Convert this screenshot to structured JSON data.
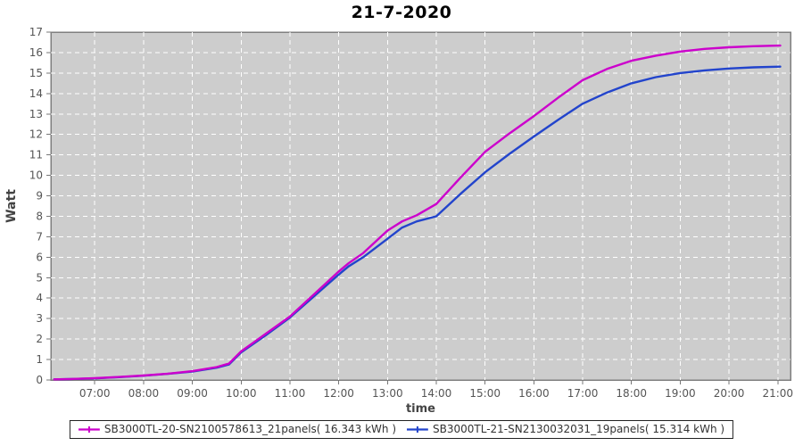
{
  "title": "21-7-2020",
  "chart_data": {
    "type": "line",
    "title": "21-7-2020",
    "xlabel": "time",
    "ylabel": "Watt",
    "ylim": [
      0,
      17
    ],
    "xlim_hours": [
      6.1,
      21.26
    ],
    "grid": "white dashed gridlines on gray panel, hourly vertical, unit horizontal",
    "legend_position": "bottom-center boxed",
    "x_tick_labels": [
      "07:00",
      "08:00",
      "09:00",
      "10:00",
      "11:00",
      "12:00",
      "13:00",
      "14:00",
      "15:00",
      "16:00",
      "17:00",
      "18:00",
      "19:00",
      "20:00",
      "21:00"
    ],
    "x_tick_hours": [
      7,
      8,
      9,
      10,
      11,
      12,
      13,
      14,
      15,
      16,
      17,
      18,
      19,
      20,
      21
    ],
    "y_tick_labels": [
      "0",
      "1",
      "2",
      "3",
      "4",
      "5",
      "6",
      "7",
      "8",
      "9",
      "10",
      "11",
      "12",
      "13",
      "14",
      "15",
      "16",
      "17"
    ],
    "y_tick_values": [
      0,
      1,
      2,
      3,
      4,
      5,
      6,
      7,
      8,
      9,
      10,
      11,
      12,
      13,
      14,
      15,
      16,
      17
    ],
    "x_hours": [
      6.17,
      6.5,
      7.0,
      7.5,
      8.0,
      8.5,
      9.0,
      9.5,
      9.75,
      10.0,
      10.5,
      11.0,
      11.5,
      12.0,
      12.2,
      12.5,
      13.0,
      13.3,
      13.6,
      14.0,
      14.5,
      15.0,
      15.5,
      16.0,
      16.5,
      17.0,
      17.5,
      18.0,
      18.5,
      19.0,
      19.5,
      20.0,
      20.5,
      21.05
    ],
    "series": [
      {
        "name": "SB3000TL-20-SN2100578613_21panels( 16.343 kWh )",
        "color": "#cc00cc",
        "total_kwh": 16.343,
        "values": [
          0.03,
          0.05,
          0.09,
          0.15,
          0.22,
          0.31,
          0.43,
          0.63,
          0.8,
          1.4,
          2.25,
          3.1,
          4.2,
          5.3,
          5.7,
          6.2,
          7.3,
          7.75,
          8.05,
          8.6,
          9.9,
          11.15,
          12.05,
          12.9,
          13.8,
          14.65,
          15.2,
          15.6,
          15.85,
          16.05,
          16.18,
          16.26,
          16.31,
          16.343
        ]
      },
      {
        "name": "SB3000TL-21-SN2130032031_19panels( 15.314 kWh )",
        "color": "#2244cc",
        "total_kwh": 15.314,
        "values": [
          0.03,
          0.05,
          0.08,
          0.14,
          0.21,
          0.3,
          0.41,
          0.6,
          0.76,
          1.35,
          2.18,
          3.05,
          4.1,
          5.15,
          5.55,
          6.0,
          6.9,
          7.45,
          7.75,
          8.0,
          9.1,
          10.15,
          11.05,
          11.9,
          12.72,
          13.5,
          14.05,
          14.5,
          14.8,
          15.0,
          15.13,
          15.22,
          15.28,
          15.314
        ]
      }
    ]
  },
  "colors": {
    "plot_bg": "#cdcdcd",
    "plot_border": "#7f7f7f",
    "grid": "#ffffff",
    "tick_text": "#555555",
    "axis_label_text": "#444444",
    "title_text": "#000000",
    "legend_text": "#333333",
    "legend_border": "#222222"
  }
}
